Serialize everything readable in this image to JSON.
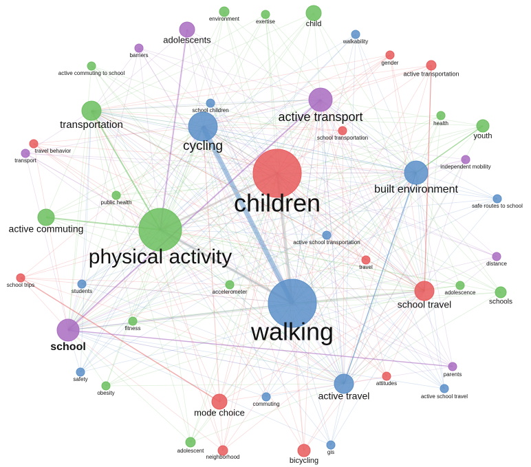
{
  "nodes": [
    {
      "label": "environment"
    },
    {
      "label": "exertise"
    },
    {
      "label": "child"
    },
    {
      "label": "adolescents"
    },
    {
      "label": "walkability"
    },
    {
      "label": "barriers"
    },
    {
      "label": "gender"
    },
    {
      "label": "active transportation"
    },
    {
      "label": "active commuting to school"
    },
    {
      "label": "active transport"
    },
    {
      "label": "transportation"
    },
    {
      "label": "school children"
    },
    {
      "label": "health"
    },
    {
      "label": "youth"
    },
    {
      "label": "cycling"
    },
    {
      "label": "school transportation"
    },
    {
      "label": "travel behavior"
    },
    {
      "label": "transport"
    },
    {
      "label": "children"
    },
    {
      "label": "built environment"
    },
    {
      "label": "independent mobility"
    },
    {
      "label": "safe routes to school"
    },
    {
      "label": "public health"
    },
    {
      "label": "active commuting"
    },
    {
      "label": "physical activity"
    },
    {
      "label": "active school transportation"
    },
    {
      "label": "travel"
    },
    {
      "label": "distance"
    },
    {
      "label": "school trips"
    },
    {
      "label": "students"
    },
    {
      "label": "accelerometer"
    },
    {
      "label": "school travel"
    },
    {
      "label": "adolescence"
    },
    {
      "label": "schools"
    },
    {
      "label": "walking"
    },
    {
      "label": "fitness"
    },
    {
      "label": "school"
    },
    {
      "label": "parents"
    },
    {
      "label": "safety"
    },
    {
      "label": "attitudes"
    },
    {
      "label": "obesity"
    },
    {
      "label": "active travel"
    },
    {
      "label": "active school travel"
    },
    {
      "label": "mode choice"
    },
    {
      "label": "commuting"
    },
    {
      "label": "adolescent"
    },
    {
      "label": "neighborhood"
    },
    {
      "label": "bicycling"
    },
    {
      "label": "gis"
    }
  ]
}
